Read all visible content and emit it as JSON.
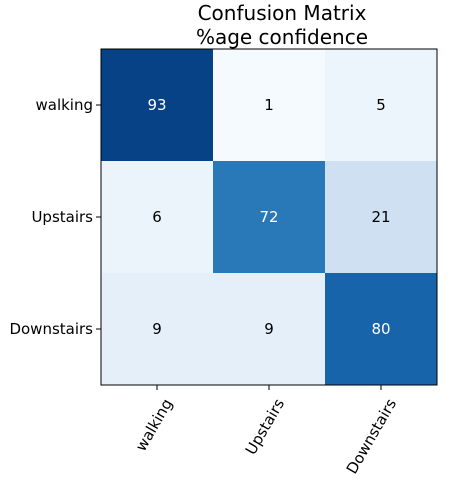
{
  "chart_data": {
    "type": "heatmap",
    "title": "Confusion Matrix",
    "subtitle": "%age confidence",
    "xlabel": "",
    "ylabel": "",
    "row_labels": [
      "walking",
      "Upstairs",
      "Downstairs"
    ],
    "col_labels": [
      "walking",
      "Upstairs",
      "Downstairs"
    ],
    "values": [
      [
        93,
        1,
        5
      ],
      [
        6,
        72,
        21
      ],
      [
        9,
        9,
        80
      ]
    ],
    "value_range": [
      0,
      100
    ],
    "colormap": "Blues",
    "colors": {
      "low": "#f7fbff",
      "high": "#08306b",
      "text_dark": "#000000",
      "text_light": "#ffffff"
    },
    "grid": false,
    "legend": "none"
  }
}
